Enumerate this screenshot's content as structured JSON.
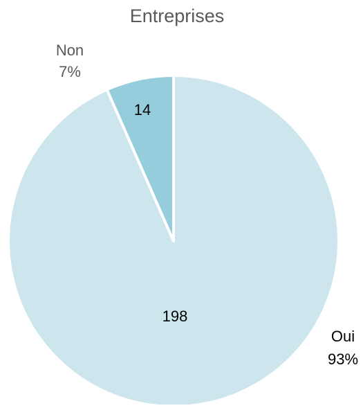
{
  "chart_data": {
    "type": "pie",
    "title": "Entreprises",
    "slices": [
      {
        "label": "Oui",
        "value": 198,
        "percent_label": "93%",
        "color": "#cde6ee"
      },
      {
        "label": "Non",
        "value": 14,
        "percent_label": "7%",
        "color": "#96cddd"
      }
    ],
    "start_angle_deg": 0,
    "direction": "clockwise",
    "separator_color": "#ffffff",
    "label_color": "#000000",
    "category_label_color": "#595959",
    "title_color": "#595959"
  }
}
